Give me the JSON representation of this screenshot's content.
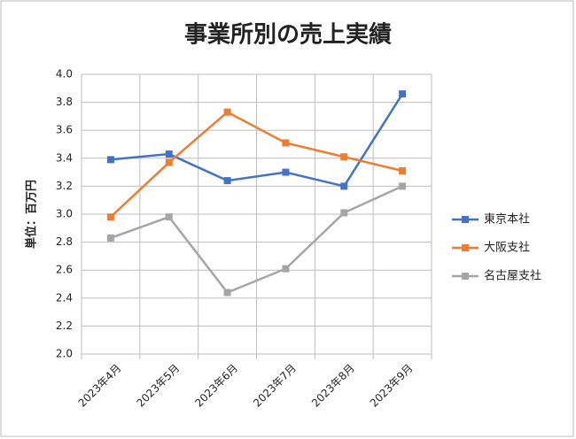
{
  "chart_data": {
    "type": "line",
    "title": "事業所別の売上実績",
    "y_label": "単位：百万円",
    "categories": [
      "2023年4月",
      "2023年5月",
      "2023年6月",
      "2023年7月",
      "2023年8月",
      "2023年9月"
    ],
    "series": [
      {
        "name": "東京本社",
        "color": "#4472c4",
        "values": [
          3.39,
          3.43,
          3.24,
          3.3,
          3.2,
          3.86
        ]
      },
      {
        "name": "大阪支社",
        "color": "#ed7d31",
        "values": [
          2.98,
          3.37,
          3.73,
          3.51,
          3.41,
          3.31
        ]
      },
      {
        "name": "名古屋支社",
        "color": "#a5a5a5",
        "values": [
          2.83,
          2.98,
          2.44,
          2.61,
          3.01,
          3.2
        ]
      }
    ],
    "ylim": [
      2.0,
      4.0
    ],
    "yticks": [
      {
        "value": 2,
        "label": "2.0"
      },
      2.2,
      2.4,
      2.6,
      2.8,
      {
        "value": 3,
        "label": "3.0"
      },
      3.2,
      3.4,
      3.6,
      3.8,
      {
        "value": 4,
        "label": "4.0"
      }
    ],
    "grid": true,
    "legend": "right"
  }
}
